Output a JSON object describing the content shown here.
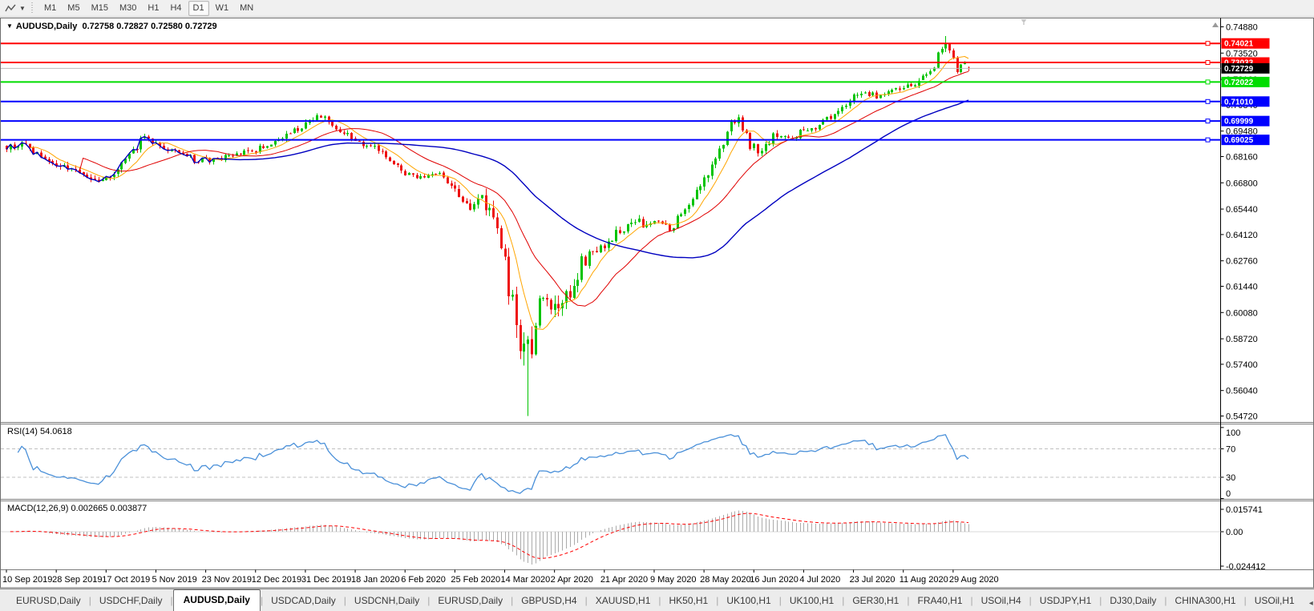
{
  "toolbar": {
    "timeframes": [
      {
        "label": "M1",
        "active": false
      },
      {
        "label": "M5",
        "active": false
      },
      {
        "label": "M15",
        "active": false
      },
      {
        "label": "M30",
        "active": false
      },
      {
        "label": "H1",
        "active": false
      },
      {
        "label": "H4",
        "active": false
      },
      {
        "label": "D1",
        "active": true
      },
      {
        "label": "W1",
        "active": false
      },
      {
        "label": "MN",
        "active": false
      }
    ]
  },
  "chart": {
    "symbol_period": "AUDUSD,Daily",
    "ohlc": "0.72758 0.72827 0.72580 0.72729"
  },
  "indicators": {
    "rsi": {
      "label": "RSI(14)",
      "value": "54.0618"
    },
    "macd": {
      "label": "MACD(12,26,9)",
      "values": "0.002665 0.003877"
    }
  },
  "colors": {
    "up": "#00C300",
    "down": "#EE1111",
    "ma_fast": "#FFA500",
    "ma_mid": "#E00000",
    "ma_slow": "#0000C0",
    "bid_line": "#BDBDBD",
    "bid_label_bg": "#000000",
    "rsi": "#4A90D9",
    "levels": "#C0C0C0",
    "macd_hist": "#ABABAB",
    "macd_signal": "#FF0000",
    "separator": "#7C7C7C",
    "axis_line": "#000000"
  },
  "chart_data": {
    "type": "candlestick",
    "symbol": "AUDUSD",
    "timeframe": "Daily",
    "bars": 252,
    "y_range": {
      "top": 0.7488,
      "bottom": 0.5472
    },
    "y_ticks": [
      "0.74880",
      "0.73520",
      "0.72160",
      "0.70840",
      "0.69480",
      "0.68160",
      "0.66800",
      "0.65440",
      "0.64120",
      "0.62760",
      "0.61440",
      "0.60080",
      "0.58720",
      "0.57400",
      "0.56040",
      "0.54720"
    ],
    "x_labels": [
      "10 Sep 2019",
      "28 Sep 2019",
      "17 Oct 2019",
      "5 Nov 2019",
      "23 Nov 2019",
      "12 Dec 2019",
      "31 Dec 2019",
      "18 Jan 2020",
      "6 Feb 2020",
      "25 Feb 2020",
      "14 Mar 2020",
      "2 Apr 2020",
      "21 Apr 2020",
      "9 May 2020",
      "28 May 2020",
      "16 Jun 2020",
      "4 Jul 2020",
      "23 Jul 2020",
      "11 Aug 2020",
      "29 Aug 2020"
    ],
    "x_label_every": 13,
    "price_path_anchors": [
      [
        0,
        0.6865,
        0.002
      ],
      [
        4,
        0.6882,
        0.002
      ],
      [
        8,
        0.6825,
        0.002
      ],
      [
        13,
        0.6768,
        0.002
      ],
      [
        18,
        0.6728,
        0.0022
      ],
      [
        23,
        0.6692,
        0.0024
      ],
      [
        27,
        0.6722,
        0.0022
      ],
      [
        31,
        0.6788,
        0.002
      ],
      [
        36,
        0.6925,
        0.002
      ],
      [
        40,
        0.688,
        0.0018
      ],
      [
        45,
        0.6832,
        0.0018
      ],
      [
        50,
        0.6792,
        0.0016
      ],
      [
        56,
        0.6802,
        0.0016
      ],
      [
        61,
        0.6832,
        0.0016
      ],
      [
        65,
        0.6852,
        0.0016
      ],
      [
        70,
        0.6888,
        0.0018
      ],
      [
        75,
        0.6948,
        0.0018
      ],
      [
        79,
        0.7008,
        0.0018
      ],
      [
        82,
        0.7022,
        0.0016
      ],
      [
        86,
        0.6968,
        0.0016
      ],
      [
        91,
        0.6898,
        0.0016
      ],
      [
        96,
        0.6858,
        0.0016
      ],
      [
        100,
        0.6802,
        0.0018
      ],
      [
        104,
        0.6722,
        0.0018
      ],
      [
        108,
        0.6706,
        0.0016
      ],
      [
        112,
        0.6732,
        0.0016
      ],
      [
        117,
        0.6642,
        0.0022
      ],
      [
        121,
        0.6562,
        0.003
      ],
      [
        124,
        0.6618,
        0.0034
      ],
      [
        127,
        0.6452,
        0.005
      ],
      [
        129,
        0.6382,
        0.006
      ],
      [
        131,
        0.6152,
        0.0075
      ],
      [
        133,
        0.5952,
        0.0085
      ],
      [
        135,
        0.5782,
        0.009
      ],
      [
        137,
        0.5852,
        0.008
      ],
      [
        139,
        0.6022,
        0.0065
      ],
      [
        141,
        0.6102,
        0.0058
      ],
      [
        144,
        0.5992,
        0.0052
      ],
      [
        147,
        0.6122,
        0.0042
      ],
      [
        150,
        0.6262,
        0.0038
      ],
      [
        153,
        0.6312,
        0.003
      ],
      [
        156,
        0.6355,
        0.0026
      ],
      [
        160,
        0.6432,
        0.0024
      ],
      [
        164,
        0.6492,
        0.0022
      ],
      [
        167,
        0.6442,
        0.0022
      ],
      [
        170,
        0.6482,
        0.0022
      ],
      [
        173,
        0.6432,
        0.0022
      ],
      [
        177,
        0.6562,
        0.0022
      ],
      [
        181,
        0.6642,
        0.0024
      ],
      [
        185,
        0.6822,
        0.0028
      ],
      [
        189,
        0.6982,
        0.0028
      ],
      [
        191,
        0.7012,
        0.0024
      ],
      [
        194,
        0.6882,
        0.0026
      ],
      [
        197,
        0.6842,
        0.0022
      ],
      [
        200,
        0.6922,
        0.002
      ],
      [
        204,
        0.6902,
        0.0018
      ],
      [
        208,
        0.6952,
        0.0018
      ],
      [
        212,
        0.6982,
        0.0018
      ],
      [
        216,
        0.7032,
        0.0018
      ],
      [
        220,
        0.7112,
        0.0018
      ],
      [
        224,
        0.7152,
        0.0016
      ],
      [
        228,
        0.7122,
        0.0016
      ],
      [
        232,
        0.7172,
        0.0016
      ],
      [
        236,
        0.7182,
        0.0016
      ],
      [
        239,
        0.7222,
        0.0016
      ],
      [
        242,
        0.7292,
        0.0018
      ],
      [
        244,
        0.7382,
        0.002
      ],
      [
        245,
        0.7408,
        0.002
      ],
      [
        246,
        0.7368,
        0.002
      ],
      [
        248,
        0.7268,
        0.0018
      ],
      [
        250,
        0.7302,
        0.0014
      ],
      [
        251,
        0.72729,
        0.001
      ]
    ],
    "special_bars": {
      "136": {
        "low": 0.5472
      },
      "245": {
        "high": 0.744
      },
      "251": {
        "open": 0.72758,
        "high": 0.72827,
        "low": 0.7258,
        "close": 0.72729
      }
    },
    "ma_periods": {
      "fast": 8,
      "mid": 21,
      "slow": 55
    },
    "hlines": [
      {
        "price": 0.74021,
        "label": "0.74021",
        "color": "#FF0000"
      },
      {
        "price": 0.73033,
        "label": "0.73033",
        "color": "#FF0000"
      },
      {
        "price": 0.72022,
        "label": "0.72022",
        "color": "#00DD00"
      },
      {
        "price": 0.7101,
        "label": "0.71010",
        "color": "#0000FF"
      },
      {
        "price": 0.69999,
        "label": "0.69999",
        "color": "#0000FF"
      },
      {
        "price": 0.69025,
        "label": "0.69025",
        "color": "#0000FF"
      }
    ],
    "bid": {
      "price": 0.72729,
      "label": "0.72729"
    },
    "rsi": {
      "period": 14,
      "scale": [
        "100",
        "70",
        "30",
        "0"
      ],
      "scale_values": [
        100,
        70,
        30,
        0
      ],
      "levels": [
        70,
        30
      ]
    },
    "macd": {
      "fast": 12,
      "slow": 26,
      "signal": 9,
      "scale": [
        {
          "label": "0.015741",
          "value": 0.015741
        },
        {
          "label": "0.00",
          "value": 0
        },
        {
          "label": "-0.024412",
          "value": -0.024412
        }
      ]
    }
  },
  "tabs": {
    "items": [
      {
        "label": "EURUSD,Daily",
        "active": false
      },
      {
        "label": "USDCHF,Daily",
        "active": false
      },
      {
        "label": "AUDUSD,Daily",
        "active": true
      },
      {
        "label": "USDCAD,Daily",
        "active": false
      },
      {
        "label": "USDCNH,Daily",
        "active": false
      },
      {
        "label": "EURUSD,Daily",
        "active": false
      },
      {
        "label": "GBPUSD,H4",
        "active": false
      },
      {
        "label": "XAUUSD,H1",
        "active": false
      },
      {
        "label": "HK50,H1",
        "active": false
      },
      {
        "label": "UK100,H1",
        "active": false
      },
      {
        "label": "UK100,H1",
        "active": false
      },
      {
        "label": "GER30,H1",
        "active": false
      },
      {
        "label": "FRA40,H1",
        "active": false
      },
      {
        "label": "USOil,H4",
        "active": false
      },
      {
        "label": "USDJPY,H1",
        "active": false
      },
      {
        "label": "DJ30,Daily",
        "active": false
      },
      {
        "label": "CHINA300,H1",
        "active": false
      },
      {
        "label": "USOil,H1",
        "active": false
      }
    ],
    "scroll_left": "◂",
    "scroll_right": "▸"
  }
}
